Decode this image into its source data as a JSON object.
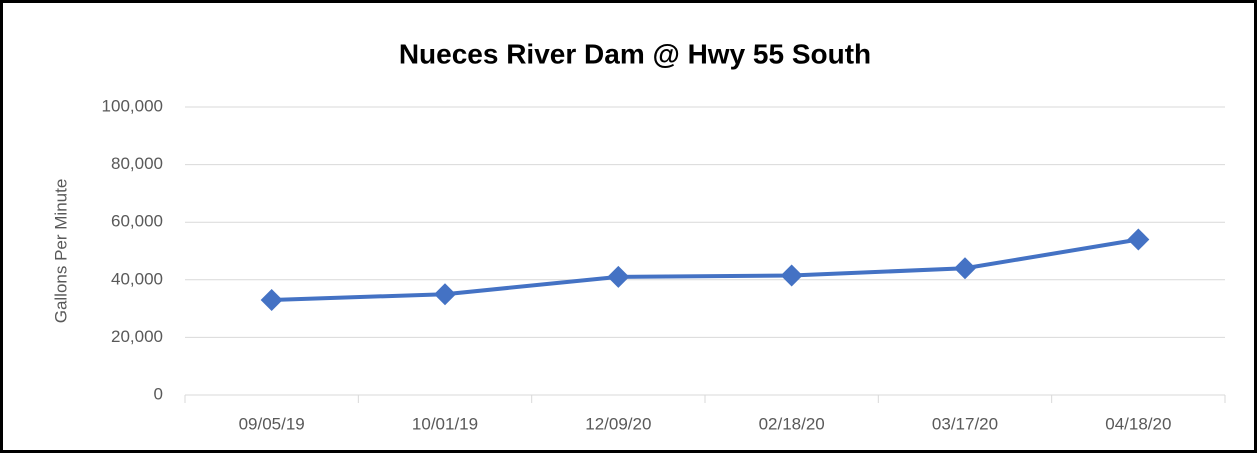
{
  "chart_data": {
    "type": "line",
    "title": "Nueces River Dam @ Hwy 55 South",
    "y_label": "Gallons Per Minute",
    "categories": [
      "09/05/19",
      "10/01/19",
      "12/09/20",
      "02/18/20",
      "03/17/20",
      "04/18/20"
    ],
    "series": [
      {
        "name": "Gallons Per Minute",
        "color": "#4472c4",
        "values": [
          33000,
          35000,
          41000,
          41500,
          44000,
          54000
        ]
      }
    ],
    "ylim": [
      0,
      100000
    ],
    "yticks": [
      0,
      {
        "value": 20000,
        "label": "20,000"
      },
      {
        "value": 40000,
        "label": "40,000"
      },
      {
        "value": 60000,
        "label": "60,000"
      },
      {
        "value": 80000,
        "label": "80,000"
      },
      {
        "value": 100000,
        "label": "100,000"
      }
    ],
    "grid": true
  }
}
